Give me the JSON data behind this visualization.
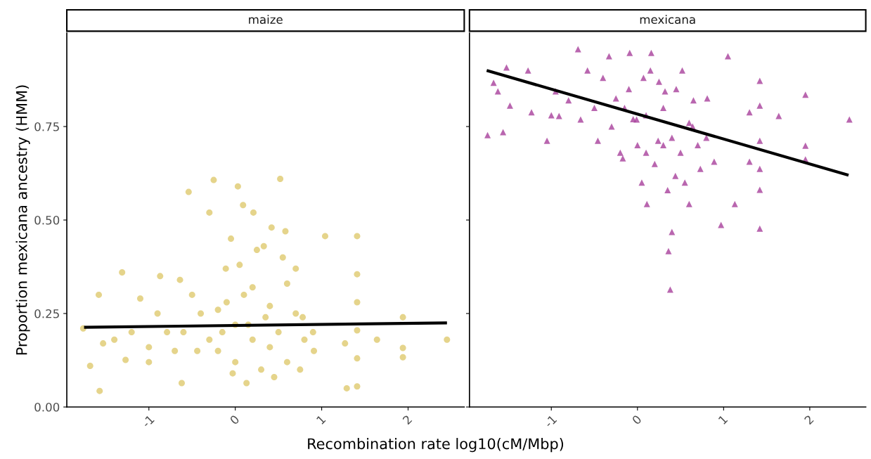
{
  "chart_data": [
    {
      "type": "scatter",
      "title": "maize",
      "xlabel": "Recombination rate log10(cM/Mbp)",
      "ylabel": "Proportion mexicana ancestry (HMM)",
      "xlim": [
        -1.95,
        2.65
      ],
      "xticks": [
        -1,
        0,
        1,
        2
      ],
      "ylim": [
        0,
        1.0
      ],
      "yticks": [
        {
          "value": 0,
          "label": "0.00"
        },
        {
          "value": 0.25,
          "label": "0.25"
        },
        {
          "value": 0.5,
          "label": "0.50"
        },
        {
          "value": 0.75,
          "label": "0.75"
        }
      ],
      "grid": false,
      "series": [
        {
          "type": "scatter",
          "marker": "circle",
          "color": "#dfc96e",
          "x": [
            -1.76,
            -1.68,
            -1.57,
            -1.58,
            -1.53,
            -1.31,
            -1.27,
            -1.1,
            -1.0,
            -0.87,
            -0.79,
            -0.64,
            -0.62,
            -0.54,
            -0.44,
            -0.3,
            -0.25,
            -0.2,
            -0.11,
            -0.03,
            0.03,
            0.09,
            0.13,
            0.21,
            0.33,
            0.42,
            0.52,
            0.58,
            0.7,
            0.78,
            0.91,
            1.04,
            1.27,
            1.29,
            1.41,
            1.41,
            1.41,
            1.41,
            1.41,
            1.41,
            1.64,
            1.94,
            1.94,
            1.94,
            2.45,
            -0.6,
            -0.4,
            -0.2,
            0,
            0.2,
            0.4,
            0.6,
            0.1,
            0.3,
            -0.1,
            0.5,
            0.7,
            -0.3,
            0,
            0.2,
            0.4,
            -0.5,
            0.6,
            -0.7,
            0.8,
            0.15,
            0.35,
            -0.15,
            0.45,
            0.05,
            0.25,
            -0.05,
            0.55,
            -0.9,
            -1.2,
            -1.4,
            -1.0,
            0.9,
            0.75
          ],
          "values": [
            0.21,
            0.11,
            0.043,
            0.3,
            0.17,
            0.36,
            0.126,
            0.29,
            0.12,
            0.35,
            0.2,
            0.34,
            0.064,
            0.575,
            0.15,
            0.52,
            0.607,
            0.26,
            0.37,
            0.09,
            0.59,
            0.54,
            0.064,
            0.52,
            0.43,
            0.48,
            0.61,
            0.47,
            0.37,
            0.24,
            0.15,
            0.457,
            0.17,
            0.05,
            0.457,
            0.355,
            0.28,
            0.205,
            0.13,
            0.055,
            0.18,
            0.24,
            0.133,
            0.158,
            0.18,
            0.2,
            0.25,
            0.15,
            0.22,
            0.18,
            0.27,
            0.12,
            0.3,
            0.1,
            0.28,
            0.2,
            0.25,
            0.18,
            0.12,
            0.32,
            0.16,
            0.3,
            0.33,
            0.15,
            0.18,
            0.22,
            0.24,
            0.2,
            0.08,
            0.38,
            0.42,
            0.45,
            0.4,
            0.25,
            0.2,
            0.18,
            0.16,
            0.2,
            0.1
          ]
        },
        {
          "type": "line",
          "color": "#000000",
          "x": [
            -1.75,
            2.45
          ],
          "values": [
            0.213,
            0.225
          ]
        }
      ]
    },
    {
      "type": "scatter",
      "title": "mexicana",
      "xlim": [
        -1.95,
        2.65
      ],
      "xticks": [
        -1,
        0,
        1,
        2
      ],
      "ylim": [
        0,
        1.0
      ],
      "yticks": [
        {
          "value": 0,
          "label": null
        },
        {
          "value": 0.25,
          "label": null
        },
        {
          "value": 0.5,
          "label": null
        },
        {
          "value": 0.75,
          "label": null
        }
      ],
      "tick_labels": "x",
      "grid": false,
      "series": [
        {
          "type": "scatter",
          "marker": "triangle",
          "color": "#a8409b",
          "x": [
            -1.74,
            -1.67,
            -1.56,
            -1.62,
            -1.52,
            -1.48,
            -1.27,
            -1.23,
            -1.05,
            -0.95,
            -0.91,
            -0.69,
            -0.66,
            -0.58,
            -0.46,
            -0.33,
            -0.25,
            -0.17,
            -0.09,
            -0.01,
            0.07,
            0.11,
            0.16,
            0.24,
            0.32,
            0.36,
            0.38,
            0.4,
            0.44,
            0.52,
            0.6,
            0.64,
            0.73,
            0.81,
            0.89,
            0.97,
            1.05,
            1.13,
            1.3,
            1.3,
            1.42,
            1.42,
            1.42,
            1.42,
            1.42,
            1.42,
            1.64,
            1.95,
            1.95,
            1.95,
            2.46,
            -0.5,
            -0.3,
            -0.1,
            0,
            0.1,
            0.2,
            0.3,
            0.4,
            0.5,
            0.6,
            -0.2,
            0.15,
            0.05,
            0.35,
            0.45,
            0.25,
            -0.4,
            0.7,
            0.55,
            0.1,
            -0.05,
            0.3,
            -0.15,
            0.65,
            -0.8,
            -1.0,
            0.8
          ],
          "values": [
            0.727,
            0.867,
            0.735,
            0.844,
            0.908,
            0.806,
            0.9,
            0.788,
            0.712,
            0.844,
            0.778,
            0.957,
            0.769,
            0.9,
            0.712,
            0.938,
            0.825,
            0.665,
            0.947,
            0.769,
            0.88,
            0.543,
            0.947,
            0.712,
            0.844,
            0.417,
            0.314,
            0.468,
            0.618,
            0.9,
            0.543,
            0.75,
            0.637,
            0.825,
            0.656,
            0.487,
            0.938,
            0.543,
            0.788,
            0.656,
            0.872,
            0.806,
            0.712,
            0.637,
            0.581,
            0.477,
            0.778,
            0.835,
            0.699,
            0.662,
            0.769,
            0.8,
            0.75,
            0.85,
            0.7,
            0.78,
            0.65,
            0.8,
            0.72,
            0.68,
            0.76,
            0.68,
            0.9,
            0.6,
            0.58,
            0.85,
            0.87,
            0.88,
            0.7,
            0.6,
            0.68,
            0.77,
            0.7,
            0.8,
            0.82,
            0.82,
            0.78,
            0.72
          ]
        },
        {
          "type": "line",
          "color": "#000000",
          "x": [
            -1.75,
            2.45
          ],
          "values": [
            0.9,
            0.62
          ]
        }
      ]
    }
  ]
}
